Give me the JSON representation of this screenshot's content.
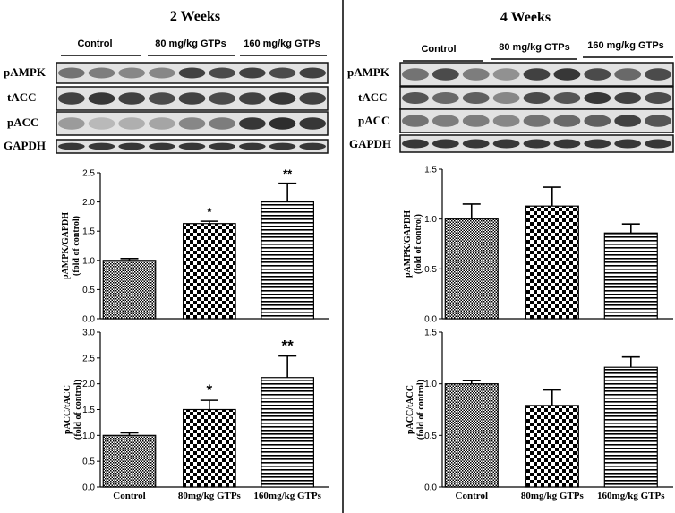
{
  "panels": [
    {
      "title": "2 Weeks",
      "groups": [
        "Control",
        "80 mg/kg  GTPs",
        "160 mg/kg  GTPs"
      ],
      "blots": [
        "pAMPK",
        "tACC",
        "pACC",
        "GAPDH"
      ]
    },
    {
      "title": "4 Weeks",
      "groups": [
        "Control",
        "80 mg/kg  GTPs",
        "160 mg/kg  GTPs"
      ],
      "blots": [
        "pAMPK",
        "tACC",
        "pACC",
        "GAPDH"
      ]
    }
  ],
  "chart_data": [
    {
      "type": "bar",
      "title": "",
      "categories": [
        "Control",
        "80mg/kg GTPs",
        "160mg/kg GTPs"
      ],
      "ylabel": [
        "pAMPK/GAPDH",
        "(fold of control)"
      ],
      "ylim": [
        0,
        2.5
      ],
      "yticks": [
        "0.0",
        "0.5",
        "1.0",
        "1.5",
        "2.0",
        "2.5"
      ],
      "values": [
        1.0,
        1.63,
        2.0
      ],
      "errors": [
        0.03,
        0.04,
        0.32
      ],
      "annotations": [
        "",
        "*",
        "**"
      ],
      "show_categories": false
    },
    {
      "type": "bar",
      "title": "",
      "categories": [
        "Control",
        "80mg/kg GTPs",
        "160mg/kg GTPs"
      ],
      "ylabel": [
        "pACC/tACC",
        "(fold of control)"
      ],
      "ylim": [
        0,
        3.0
      ],
      "yticks": [
        "0.0",
        "0.5",
        "1.0",
        "1.5",
        "2.0",
        "2.5",
        "3.0"
      ],
      "values": [
        1.0,
        1.5,
        2.12
      ],
      "errors": [
        0.05,
        0.18,
        0.42
      ],
      "annotations": [
        "",
        "*",
        "**"
      ],
      "show_categories": true
    },
    {
      "type": "bar",
      "title": "",
      "categories": [
        "Control",
        "80mg/kg GTPs",
        "160mg/kg GTPs"
      ],
      "ylabel": [
        "pAMPK/GAPDH",
        "(fold of control)"
      ],
      "ylim": [
        0,
        1.5
      ],
      "yticks": [
        "0.0",
        "0.5",
        "1.0",
        "1.5"
      ],
      "values": [
        1.0,
        1.13,
        0.86
      ],
      "errors": [
        0.15,
        0.19,
        0.09
      ],
      "annotations": [
        "",
        "",
        ""
      ],
      "show_categories": false
    },
    {
      "type": "bar",
      "title": "",
      "categories": [
        "Control",
        "80mg/kg GTPs",
        "160mg/kg GTPs"
      ],
      "ylabel": [
        "pACC/tACC",
        "(fold of control)"
      ],
      "ylim": [
        0,
        1.5
      ],
      "yticks": [
        "0.0",
        "0.5",
        "1.0",
        "1.5"
      ],
      "values": [
        1.0,
        0.79,
        1.16
      ],
      "errors": [
        0.03,
        0.15,
        0.1
      ],
      "annotations": [
        "",
        "",
        ""
      ],
      "show_categories": true
    }
  ]
}
